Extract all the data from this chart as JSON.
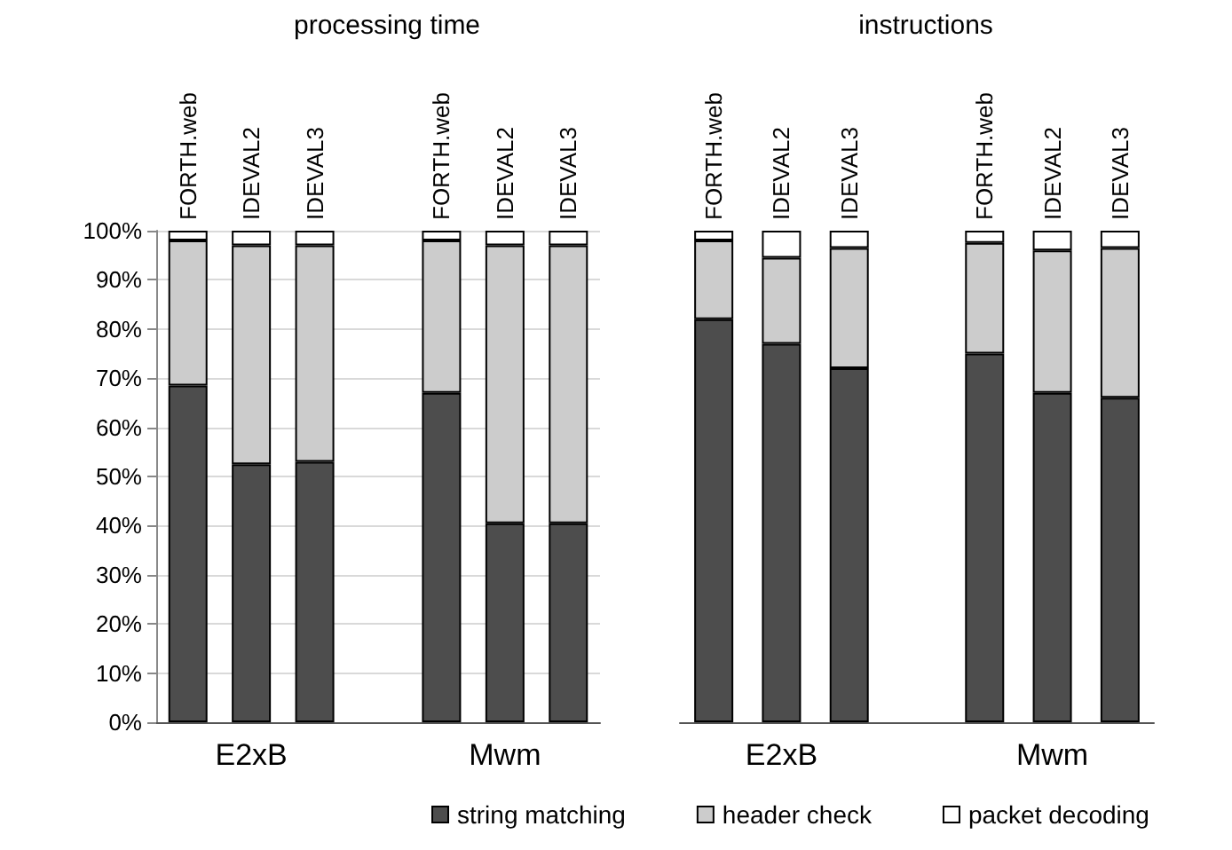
{
  "chart_data": [
    {
      "type": "bar",
      "title": "processing time",
      "stacked": true,
      "categories": [
        "FORTH.web",
        "IDEVAL2",
        "IDEVAL3",
        null,
        "FORTH.web",
        "IDEVAL2",
        "IDEVAL3"
      ],
      "series": [
        {
          "name": "string matching",
          "color": "#4d4d4d",
          "values": [
            68.5,
            52.5,
            53,
            null,
            67,
            40.5,
            40.5
          ]
        },
        {
          "name": "header check",
          "color": "#cccccc",
          "values": [
            29.5,
            44.5,
            44,
            null,
            31,
            56.5,
            56.5
          ]
        },
        {
          "name": "packet decoding",
          "color": "#ffffff",
          "values": [
            2,
            3,
            3,
            null,
            2,
            3,
            3
          ]
        }
      ],
      "ylim": [
        0,
        100
      ],
      "yticks": [
        {
          "value": 0,
          "label": "0%"
        },
        {
          "value": 10,
          "label": "10%"
        },
        {
          "value": 20,
          "label": "20%"
        },
        {
          "value": 30,
          "label": "30%"
        },
        {
          "value": 40,
          "label": "40%"
        },
        {
          "value": 50,
          "label": "50%"
        },
        {
          "value": 60,
          "label": "60%"
        },
        {
          "value": 70,
          "label": "70%"
        },
        {
          "value": 80,
          "label": "80%"
        },
        {
          "value": 90,
          "label": "90%"
        },
        {
          "value": 100,
          "label": "100%"
        }
      ],
      "grid": "y",
      "legend": "bottom",
      "annotations": [
        "E2xB",
        "Mwm"
      ]
    },
    {
      "type": "bar",
      "title": "instructions",
      "stacked": true,
      "categories": [
        "FORTH.web",
        "IDEVAL2",
        "IDEVAL3",
        null,
        "FORTH.web",
        "IDEVAL2",
        "IDEVAL3"
      ],
      "series": [
        {
          "color": "#4d4d4d",
          "values": [
            82,
            77,
            72,
            null,
            75,
            67,
            66
          ]
        },
        {
          "color": "#cccccc",
          "values": [
            16,
            17.5,
            24.5,
            null,
            22.5,
            29,
            30.5
          ]
        },
        {
          "color": "#ffffff",
          "values": [
            2,
            5.5,
            3.5,
            null,
            2.5,
            4,
            3.5
          ]
        }
      ],
      "ylim": [
        0,
        100
      ],
      "tick_labels": "x",
      "annotations": [
        "E2xB",
        "Mwm"
      ]
    }
  ]
}
